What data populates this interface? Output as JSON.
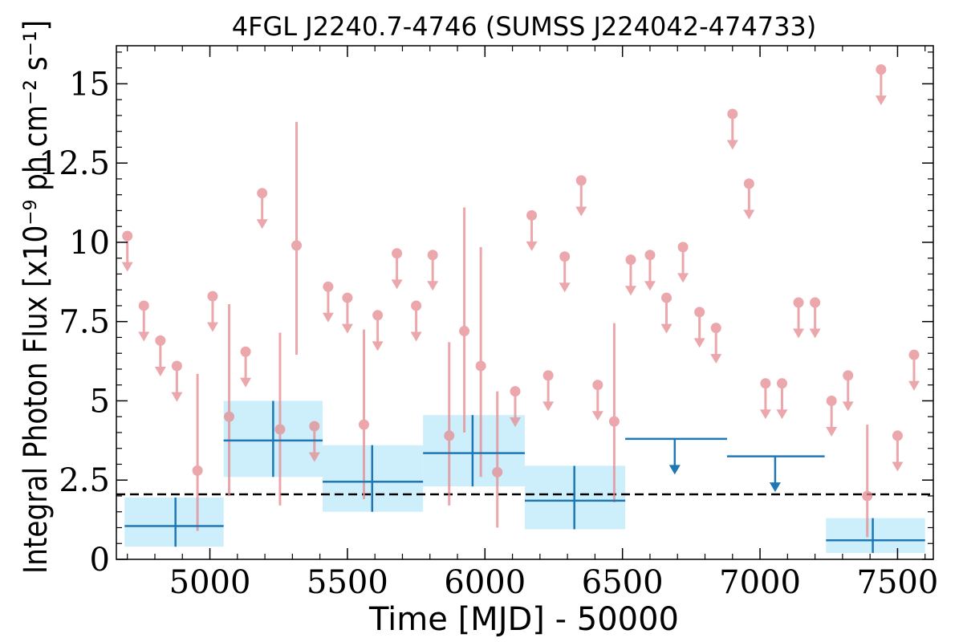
{
  "chart_data": {
    "type": "scatter",
    "title": "4FGL J2240.7-4746 (SUMSS J224042-474733)",
    "xlabel": "Time [MJD] - 50000",
    "ylabel": "Integral Photon Flux [x10⁻⁹ ph cm⁻² s⁻¹]",
    "xlim": [
      4660,
      7630
    ],
    "ylim": [
      0,
      16.2
    ],
    "x_ticks": [
      5000,
      5500,
      6000,
      6500,
      7000,
      7500
    ],
    "x_tick_labels": [
      "5000",
      "5500",
      "6000",
      "6500",
      "7000",
      "7500"
    ],
    "y_ticks": [
      0,
      2.5,
      5,
      7.5,
      10,
      12.5,
      15
    ],
    "y_tick_labels": [
      "0",
      "2.5",
      "5",
      "7.5",
      "10",
      "12.5",
      "15"
    ],
    "grid": false,
    "reference_line": {
      "y": 2.05,
      "style": "dashed",
      "color": "#000000"
    },
    "colors": {
      "fine": "#e58a8f",
      "coarse": "#1f77b4",
      "band": "#cdeefb"
    },
    "series": [
      {
        "label": "fine bins (upper limits)",
        "kind": "upper_limit",
        "x": [
          4700,
          4760,
          4820,
          4880,
          5010,
          5130,
          5190,
          5380,
          5430,
          5500,
          5610,
          5680,
          5750,
          5810,
          6110,
          6170,
          6230,
          6290,
          6350,
          6410,
          6530,
          6600,
          6660,
          6720,
          6780,
          6840,
          6900,
          6960,
          7020,
          7080,
          7140,
          7200,
          7260,
          7320,
          7440,
          7500,
          7560
        ],
        "y": [
          10.2,
          8.0,
          6.9,
          6.1,
          8.3,
          6.55,
          11.55,
          4.2,
          8.6,
          8.25,
          7.7,
          9.65,
          8.0,
          9.6,
          5.3,
          10.85,
          5.8,
          9.55,
          11.95,
          5.5,
          9.45,
          9.6,
          8.25,
          9.85,
          7.8,
          7.3,
          14.05,
          11.85,
          5.55,
          5.55,
          8.1,
          8.1,
          5.0,
          5.8,
          15.45,
          3.9,
          6.45
        ]
      },
      {
        "label": "fine bins (detections)",
        "kind": "detection",
        "x": [
          4955,
          5070,
          5255,
          5315,
          5560,
          5870,
          5925,
          5985,
          6045,
          6470,
          7390
        ],
        "y": [
          2.8,
          4.5,
          4.1,
          9.9,
          4.25,
          3.9,
          7.2,
          6.1,
          2.75,
          4.35,
          2.0
        ],
        "y_low": [
          0.9,
          2.0,
          1.7,
          6.45,
          1.9,
          1.7,
          4.0,
          2.6,
          1.0,
          1.8,
          0.7
        ],
        "y_high": [
          5.85,
          8.05,
          7.15,
          13.8,
          7.25,
          6.85,
          11.1,
          9.85,
          5.3,
          7.45,
          4.25
        ]
      },
      {
        "label": "coarse bins (detections)",
        "kind": "detection",
        "x": [
          4875,
          5230,
          5590,
          5955,
          6325,
          7410
        ],
        "x_low": [
          4690,
          5050,
          5410,
          5775,
          6145,
          7240
        ],
        "x_high": [
          5050,
          5410,
          5775,
          6145,
          6510,
          7600
        ],
        "y": [
          1.05,
          3.75,
          2.45,
          3.35,
          1.85,
          0.6
        ],
        "y_low": [
          0.4,
          2.6,
          1.5,
          2.3,
          0.95,
          0.2
        ],
        "y_high": [
          1.95,
          5.0,
          3.6,
          4.55,
          2.95,
          1.3
        ]
      },
      {
        "label": "coarse bins (upper limits)",
        "kind": "upper_limit",
        "x": [
          6690,
          7055
        ],
        "x_low": [
          6510,
          6880
        ],
        "x_high": [
          6880,
          7235
        ],
        "y": [
          3.8,
          3.25
        ]
      }
    ]
  }
}
